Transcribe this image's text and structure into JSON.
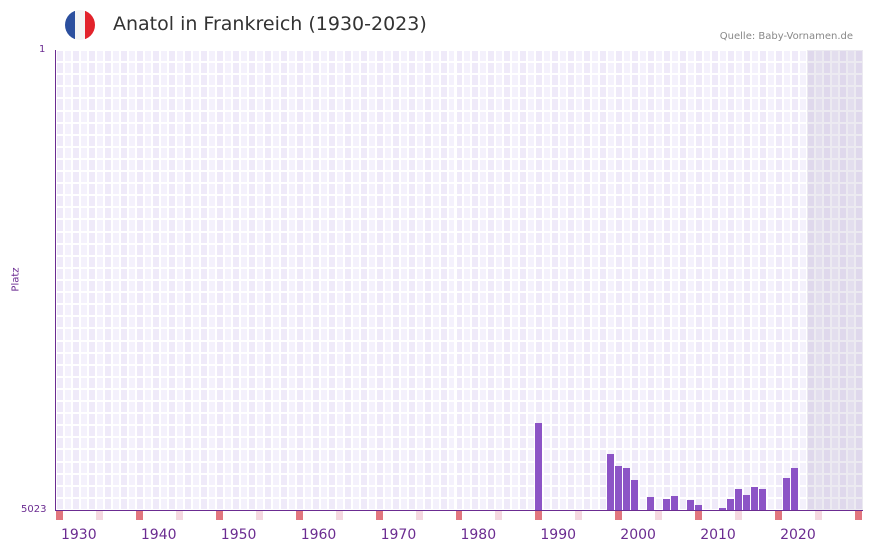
{
  "header": {
    "title": "Anatol in Frankreich (1930-2023)",
    "source": "Quelle: Baby-Vornamen.de",
    "flag_colors": [
      "#2b4f9e",
      "#f4f4f4",
      "#e2232b"
    ]
  },
  "colors": {
    "bar": "#8c54c6",
    "axis": "#6b2c91",
    "decade_marker": "#e2767f",
    "mid_marker": "#f5d8e0",
    "grid_a": "#efeaf9",
    "grid_b": "#f4f1fc"
  },
  "chart_data": {
    "type": "bar",
    "title": "Anatol in Frankreich (1930-2023)",
    "xlabel": "",
    "ylabel": "Platz",
    "y_axis_inverted": true,
    "ylim": [
      5023,
      1
    ],
    "y_ticks": [
      "1",
      "5023"
    ],
    "x_ticks": [
      "1930",
      "1940",
      "1950",
      "1960",
      "1970",
      "1980",
      "1990",
      "2000",
      "2010",
      "2020"
    ],
    "x_range": [
      1929,
      2029
    ],
    "shaded_future_from": 2023,
    "grid": true,
    "legend": null,
    "series": [
      {
        "name": "Anatol",
        "unit": "bar height as fraction of range above baseline (rank 5023)",
        "points": [
          {
            "year": 1989,
            "height": 0.189
          },
          {
            "year": 1998,
            "height": 0.122
          },
          {
            "year": 1999,
            "height": 0.096
          },
          {
            "year": 2000,
            "height": 0.091
          },
          {
            "year": 2001,
            "height": 0.065
          },
          {
            "year": 2003,
            "height": 0.028
          },
          {
            "year": 2005,
            "height": 0.024
          },
          {
            "year": 2006,
            "height": 0.03
          },
          {
            "year": 2008,
            "height": 0.022
          },
          {
            "year": 2009,
            "height": 0.011
          },
          {
            "year": 2012,
            "height": 0.004
          },
          {
            "year": 2013,
            "height": 0.024
          },
          {
            "year": 2014,
            "height": 0.046
          },
          {
            "year": 2015,
            "height": 0.033
          },
          {
            "year": 2016,
            "height": 0.05
          },
          {
            "year": 2017,
            "height": 0.046
          },
          {
            "year": 2020,
            "height": 0.07
          },
          {
            "year": 2021,
            "height": 0.091
          }
        ],
        "approx_rank": [
          {
            "year": 1989,
            "rank": 4074
          },
          {
            "year": 1998,
            "rank": 4411
          },
          {
            "year": 1999,
            "rank": 4541
          },
          {
            "year": 2000,
            "rank": 4566
          },
          {
            "year": 2001,
            "rank": 4696
          },
          {
            "year": 2003,
            "rank": 4882
          },
          {
            "year": 2005,
            "rank": 4903
          },
          {
            "year": 2006,
            "rank": 4871
          },
          {
            "year": 2008,
            "rank": 4914
          },
          {
            "year": 2009,
            "rank": 4968
          },
          {
            "year": 2012,
            "rank": 5001
          },
          {
            "year": 2013,
            "rank": 4903
          },
          {
            "year": 2014,
            "rank": 4792
          },
          {
            "year": 2015,
            "rank": 4857
          },
          {
            "year": 2016,
            "rank": 4772
          },
          {
            "year": 2017,
            "rank": 4792
          },
          {
            "year": 2020,
            "rank": 4671
          },
          {
            "year": 2021,
            "rank": 4566
          }
        ]
      }
    ]
  }
}
